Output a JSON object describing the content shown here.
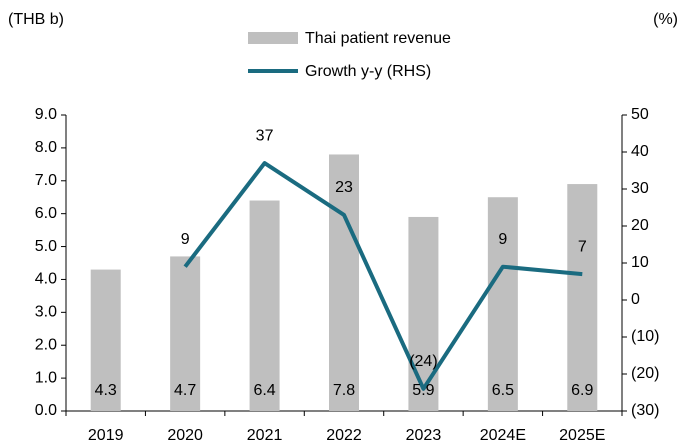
{
  "chart_data": {
    "type": "bar_line",
    "left_unit": "(THB b)",
    "right_unit": "(%)",
    "categories": [
      "2019",
      "2020",
      "2021",
      "2022",
      "2023",
      "2024E",
      "2025E"
    ],
    "series": [
      {
        "name": "Thai patient revenue",
        "color": "#bfbfbf",
        "type": "bar",
        "values": [
          4.3,
          4.7,
          6.4,
          7.8,
          5.9,
          6.5,
          6.9
        ]
      },
      {
        "name": "Growth y-y (RHS)",
        "color": "#1a6b80",
        "type": "line",
        "axis": "y2",
        "values": [
          null,
          9,
          37,
          23,
          -24,
          9,
          7
        ],
        "value_labels": [
          null,
          "9",
          "37",
          "23",
          "(24)",
          "9",
          "7"
        ]
      }
    ],
    "ylim": [
      0,
      9
    ],
    "yticks": [
      {
        "value": 0,
        "label": "0.0"
      },
      {
        "value": 1,
        "label": "1.0"
      },
      {
        "value": 2,
        "label": "2.0"
      },
      {
        "value": 3,
        "label": "3.0"
      },
      {
        "value": 4,
        "label": "4.0"
      },
      {
        "value": 5,
        "label": "5.0"
      },
      {
        "value": 6,
        "label": "6.0"
      },
      {
        "value": 7,
        "label": "7.0"
      },
      {
        "value": 8,
        "label": "8.0"
      },
      {
        "value": 9,
        "label": "9.0"
      }
    ],
    "y2lim": [
      -30,
      50
    ],
    "y2ticks": [
      {
        "value": -30,
        "label": "(30)"
      },
      {
        "value": -20,
        "label": "(20)"
      },
      {
        "value": -10,
        "label": "(10)"
      },
      0,
      10,
      20,
      30,
      40,
      50
    ],
    "grid": false
  }
}
